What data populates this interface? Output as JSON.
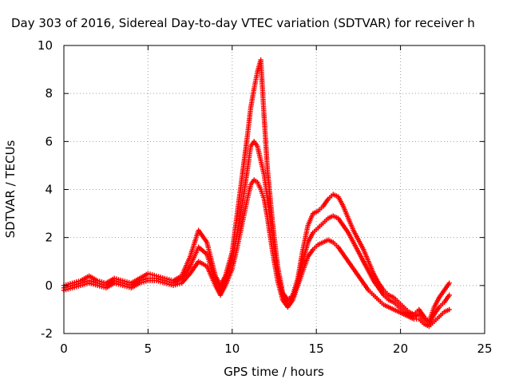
{
  "chart_data": {
    "type": "scatter",
    "title": "Day 303 of 2016, Sidereal Day-to-day VTEC variation (SDTVAR) for receiver h",
    "xlabel": "GPS time / hours",
    "ylabel": "SDTVAR / TECUs",
    "xlim": [
      0,
      25
    ],
    "ylim": [
      -2,
      10
    ],
    "xticks": [
      "0",
      "5",
      "10",
      "15",
      "20",
      "25"
    ],
    "yticks": [
      "-2",
      "0",
      "2",
      "4",
      "6",
      "8",
      "10"
    ],
    "grid": true,
    "marker": "plus",
    "color": "#ff0000",
    "series": [
      {
        "x": [
          0.0,
          0.5,
          1.0,
          1.5,
          2.0,
          2.5,
          3.0,
          3.5,
          4.0,
          4.5,
          5.0,
          5.5,
          6.0,
          6.5,
          7.0,
          7.5,
          8.0,
          8.5,
          9.0,
          9.3,
          9.6,
          10.0,
          10.3,
          10.6,
          10.9,
          11.1,
          11.3,
          11.5,
          11.7,
          11.9,
          12.1,
          12.4,
          12.7,
          13.0,
          13.3,
          13.6,
          13.9,
          14.2,
          14.5,
          14.8,
          15.1,
          15.4,
          15.7,
          16.0,
          16.3,
          16.6,
          16.9,
          17.2,
          17.5,
          17.8,
          18.1,
          18.4,
          18.7,
          19.0,
          19.3,
          19.6,
          19.9,
          20.2,
          20.5,
          20.8,
          21.1,
          21.4,
          21.7,
          22.0,
          22.3,
          22.6,
          22.9
        ],
        "y": [
          0.0,
          0.1,
          0.2,
          0.4,
          0.2,
          0.1,
          0.3,
          0.2,
          0.1,
          0.3,
          0.5,
          0.4,
          0.3,
          0.2,
          0.4,
          1.2,
          2.3,
          1.8,
          0.4,
          0.0,
          0.4,
          1.4,
          3.0,
          4.6,
          6.2,
          7.4,
          8.2,
          8.9,
          9.4,
          7.0,
          4.8,
          2.6,
          0.8,
          -0.3,
          -0.6,
          -0.4,
          0.3,
          1.5,
          2.5,
          3.0,
          3.1,
          3.3,
          3.6,
          3.8,
          3.7,
          3.3,
          2.8,
          2.3,
          1.9,
          1.5,
          1.0,
          0.5,
          0.1,
          -0.2,
          -0.4,
          -0.5,
          -0.7,
          -0.9,
          -1.1,
          -1.2,
          -1.0,
          -1.3,
          -1.5,
          -0.9,
          -0.5,
          -0.2,
          0.1
        ]
      },
      {
        "x": [
          0.0,
          0.5,
          1.0,
          1.5,
          2.0,
          2.5,
          3.0,
          3.5,
          4.0,
          4.5,
          5.0,
          5.5,
          6.0,
          6.5,
          7.0,
          7.5,
          8.0,
          8.5,
          9.0,
          9.3,
          9.6,
          10.0,
          10.3,
          10.6,
          10.9,
          11.1,
          11.3,
          11.5,
          11.7,
          11.9,
          12.1,
          12.4,
          12.7,
          13.0,
          13.3,
          13.6,
          13.9,
          14.2,
          14.5,
          14.8,
          15.1,
          15.4,
          15.7,
          16.0,
          16.3,
          16.6,
          16.9,
          17.2,
          17.5,
          17.8,
          18.1,
          18.4,
          18.7,
          19.0,
          19.3,
          19.6,
          19.9,
          20.2,
          20.5,
          20.8,
          21.1,
          21.4,
          21.7,
          22.0,
          22.3,
          22.6,
          22.9
        ],
        "y": [
          -0.1,
          0.0,
          0.1,
          0.2,
          0.1,
          0.0,
          0.2,
          0.1,
          0.0,
          0.2,
          0.3,
          0.3,
          0.2,
          0.1,
          0.3,
          0.8,
          1.6,
          1.3,
          0.2,
          -0.2,
          0.2,
          1.0,
          2.2,
          3.4,
          4.8,
          5.8,
          6.0,
          5.8,
          5.2,
          4.6,
          3.6,
          2.0,
          0.5,
          -0.4,
          -0.7,
          -0.5,
          0.1,
          1.0,
          1.8,
          2.2,
          2.4,
          2.6,
          2.8,
          2.9,
          2.8,
          2.5,
          2.2,
          1.8,
          1.4,
          1.0,
          0.6,
          0.2,
          -0.1,
          -0.4,
          -0.6,
          -0.7,
          -0.9,
          -1.1,
          -1.2,
          -1.3,
          -1.2,
          -1.4,
          -1.6,
          -1.2,
          -0.9,
          -0.7,
          -0.4
        ]
      },
      {
        "x": [
          0.0,
          0.5,
          1.0,
          1.5,
          2.0,
          2.5,
          3.0,
          3.5,
          4.0,
          4.5,
          5.0,
          5.5,
          6.0,
          6.5,
          7.0,
          7.5,
          8.0,
          8.5,
          9.0,
          9.3,
          9.6,
          10.0,
          10.3,
          10.6,
          10.9,
          11.1,
          11.3,
          11.5,
          11.7,
          11.9,
          12.1,
          12.4,
          12.7,
          13.0,
          13.3,
          13.6,
          13.9,
          14.2,
          14.5,
          14.8,
          15.1,
          15.4,
          15.7,
          16.0,
          16.3,
          16.6,
          16.9,
          17.2,
          17.5,
          17.8,
          18.1,
          18.4,
          18.7,
          19.0,
          19.3,
          19.6,
          19.9,
          20.2,
          20.5,
          20.8,
          21.1,
          21.4,
          21.7,
          22.0,
          22.3,
          22.6,
          22.9
        ],
        "y": [
          -0.2,
          -0.1,
          0.0,
          0.1,
          0.0,
          -0.1,
          0.1,
          0.0,
          -0.1,
          0.1,
          0.2,
          0.2,
          0.1,
          0.0,
          0.1,
          0.5,
          1.0,
          0.8,
          0.0,
          -0.4,
          0.0,
          0.7,
          1.6,
          2.6,
          3.6,
          4.2,
          4.4,
          4.3,
          4.0,
          3.6,
          2.8,
          1.4,
          0.2,
          -0.6,
          -0.9,
          -0.6,
          0.0,
          0.6,
          1.2,
          1.5,
          1.7,
          1.8,
          1.9,
          1.8,
          1.6,
          1.3,
          1.0,
          0.7,
          0.4,
          0.1,
          -0.2,
          -0.4,
          -0.6,
          -0.8,
          -0.9,
          -1.0,
          -1.1,
          -1.2,
          -1.3,
          -1.4,
          -1.4,
          -1.6,
          -1.7,
          -1.5,
          -1.3,
          -1.1,
          -1.0
        ]
      }
    ]
  }
}
